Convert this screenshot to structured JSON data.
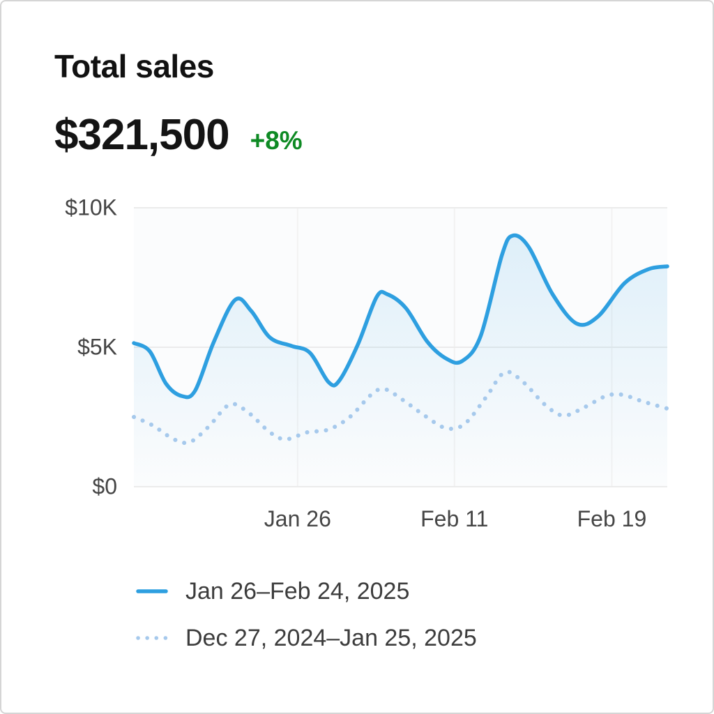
{
  "header": {
    "title": "Total sales",
    "value": "$321,500",
    "delta": "+8%"
  },
  "colors": {
    "current_line": "#2e9fe0",
    "previous_line": "#a6c9ec",
    "delta_green": "#0e8a24",
    "axis_text": "#454545",
    "grid_line": "#ebebeb",
    "plot_background": "#fbfcfd"
  },
  "chart_data": {
    "type": "line",
    "title": "Total sales",
    "grid": "light",
    "legend_position": "bottom-left",
    "ylim": [
      0,
      10000
    ],
    "yticks": [
      {
        "value": 10000,
        "label": "$10K"
      },
      {
        "value": 5000,
        "label": "$5K"
      },
      {
        "value": 0,
        "label": "$0"
      }
    ],
    "xticks": [
      {
        "pos": 0.307,
        "label": "Jan 26"
      },
      {
        "pos": 0.601,
        "label": "Feb 11"
      },
      {
        "pos": 0.896,
        "label": "Feb 19"
      }
    ],
    "series": [
      {
        "name": "Jan 26–Feb 24, 2025",
        "style": "solid",
        "color": "#2e9fe0",
        "area_fill": true,
        "points": [
          [
            0.0,
            5150
          ],
          [
            0.03,
            4850
          ],
          [
            0.06,
            3700
          ],
          [
            0.09,
            3250
          ],
          [
            0.115,
            3450
          ],
          [
            0.15,
            5200
          ],
          [
            0.19,
            6700
          ],
          [
            0.22,
            6300
          ],
          [
            0.255,
            5350
          ],
          [
            0.295,
            5050
          ],
          [
            0.33,
            4800
          ],
          [
            0.365,
            3750
          ],
          [
            0.385,
            3800
          ],
          [
            0.42,
            5100
          ],
          [
            0.455,
            6800
          ],
          [
            0.475,
            6900
          ],
          [
            0.51,
            6400
          ],
          [
            0.55,
            5200
          ],
          [
            0.585,
            4600
          ],
          [
            0.615,
            4500
          ],
          [
            0.65,
            5400
          ],
          [
            0.69,
            8300
          ],
          [
            0.71,
            9000
          ],
          [
            0.74,
            8600
          ],
          [
            0.785,
            6900
          ],
          [
            0.83,
            5850
          ],
          [
            0.87,
            6100
          ],
          [
            0.92,
            7300
          ],
          [
            0.965,
            7800
          ],
          [
            1.0,
            7900
          ]
        ]
      },
      {
        "name": "Dec 27, 2024–Jan 25, 2025",
        "style": "dotted",
        "color": "#a6c9ec",
        "area_fill": false,
        "points": [
          [
            0.0,
            2500
          ],
          [
            0.035,
            2200
          ],
          [
            0.075,
            1700
          ],
          [
            0.105,
            1600
          ],
          [
            0.14,
            2150
          ],
          [
            0.18,
            2950
          ],
          [
            0.215,
            2650
          ],
          [
            0.255,
            1950
          ],
          [
            0.285,
            1700
          ],
          [
            0.325,
            1950
          ],
          [
            0.365,
            2050
          ],
          [
            0.405,
            2500
          ],
          [
            0.445,
            3300
          ],
          [
            0.47,
            3500
          ],
          [
            0.505,
            3100
          ],
          [
            0.545,
            2550
          ],
          [
            0.585,
            2100
          ],
          [
            0.62,
            2250
          ],
          [
            0.66,
            3200
          ],
          [
            0.695,
            4100
          ],
          [
            0.73,
            3750
          ],
          [
            0.77,
            2950
          ],
          [
            0.805,
            2550
          ],
          [
            0.845,
            2850
          ],
          [
            0.885,
            3250
          ],
          [
            0.915,
            3300
          ],
          [
            0.955,
            3050
          ],
          [
            1.0,
            2800
          ]
        ]
      }
    ]
  }
}
